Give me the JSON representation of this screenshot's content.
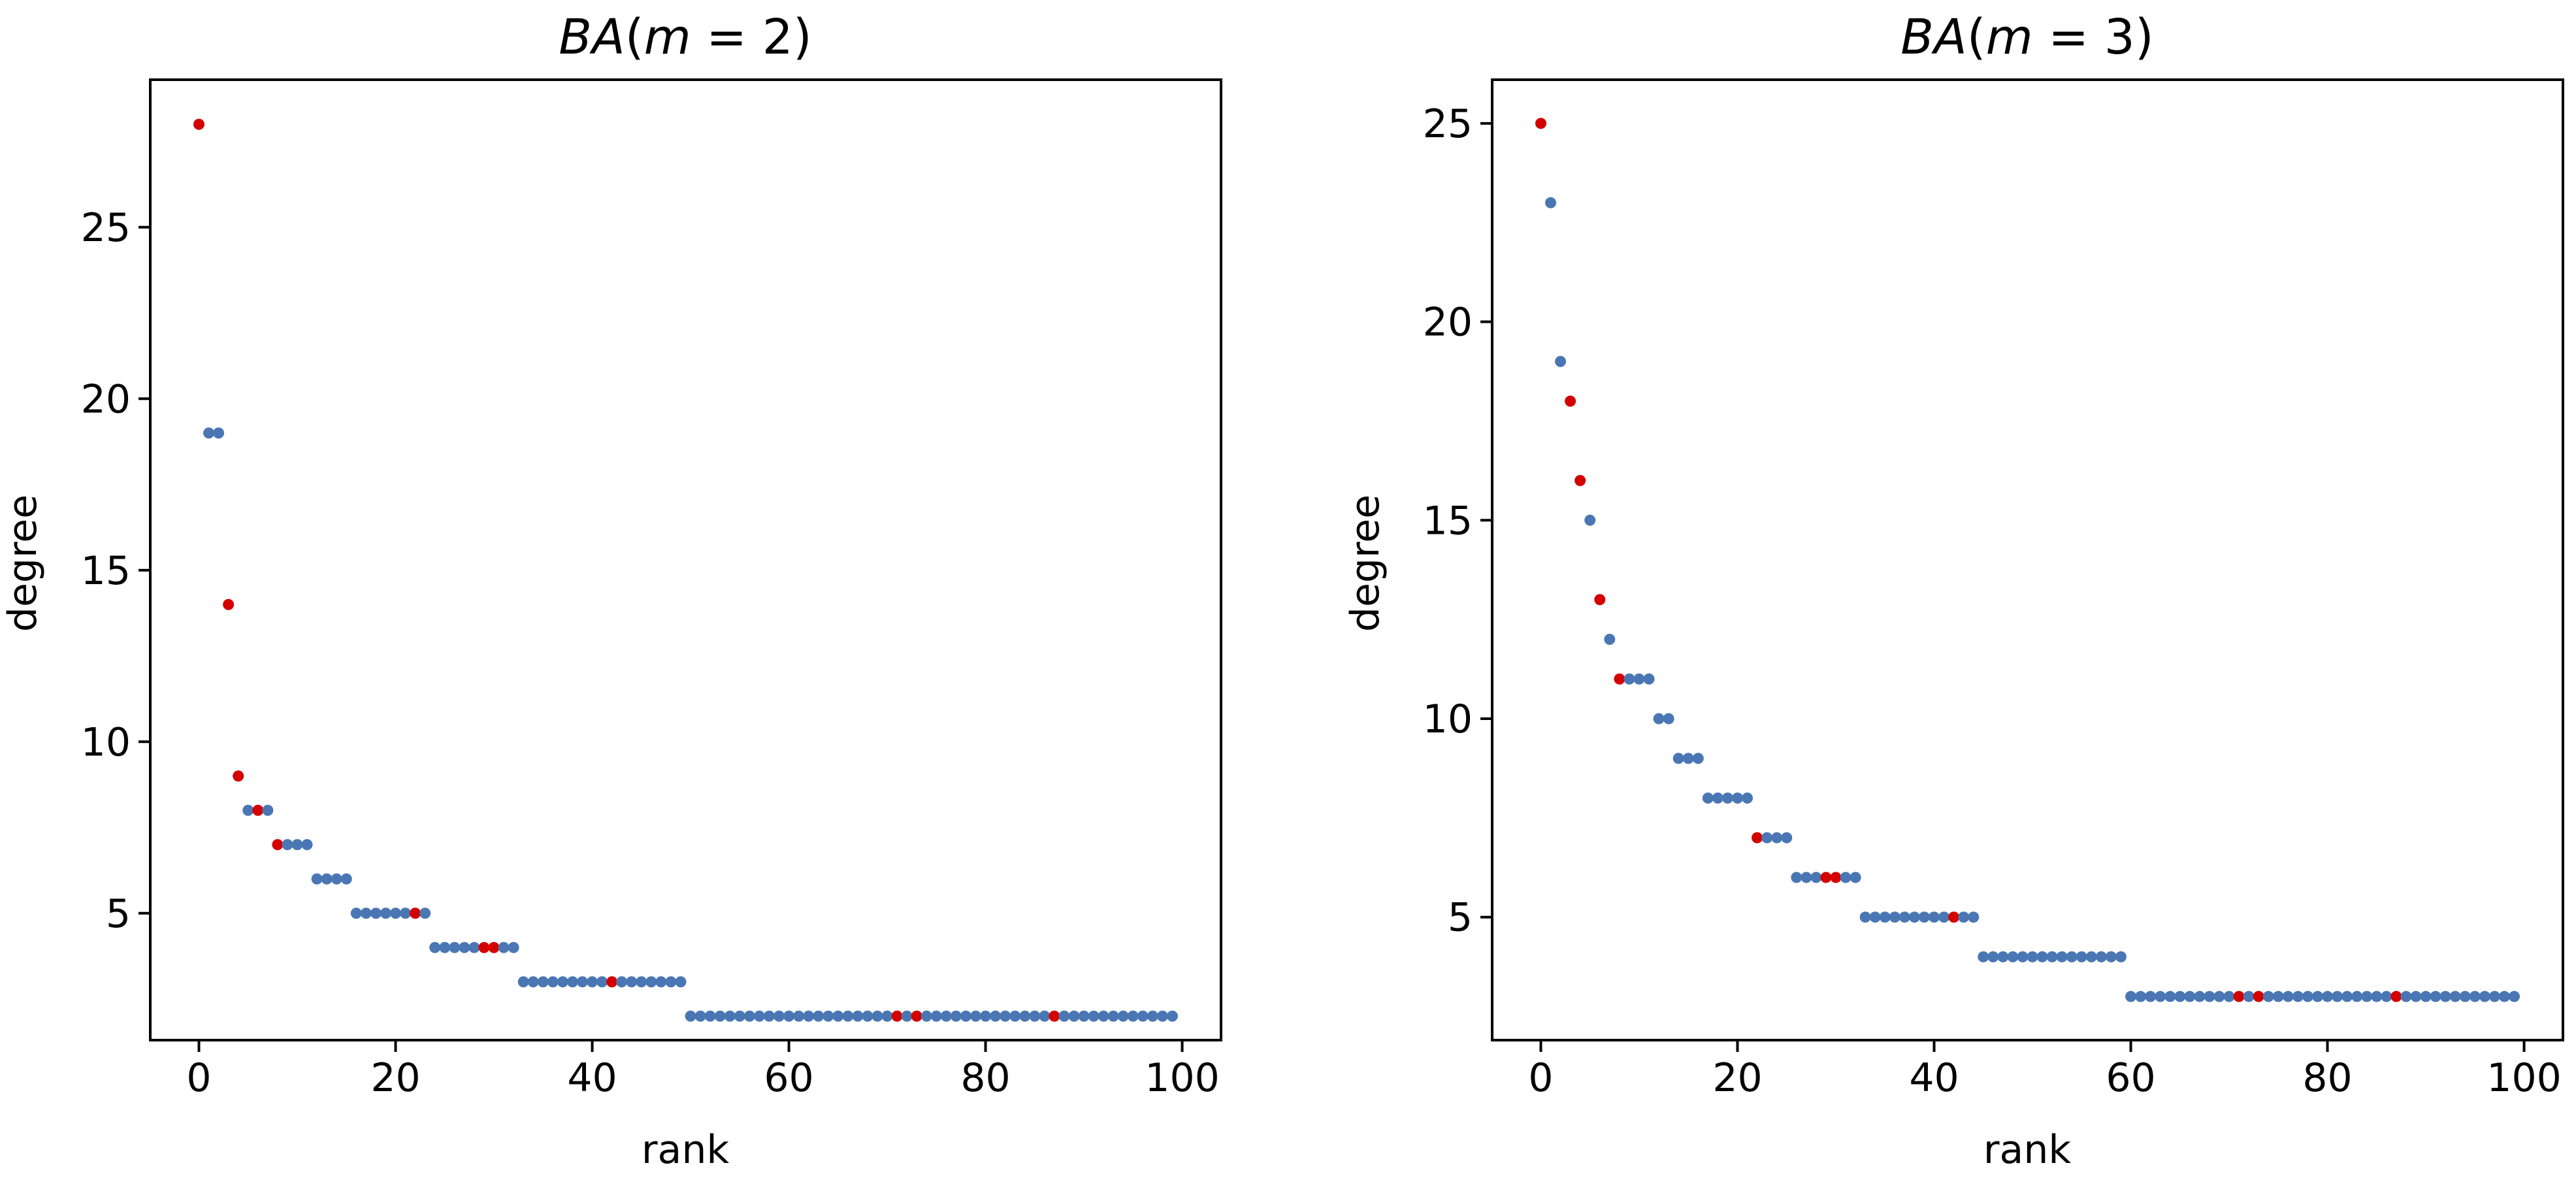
{
  "chart_data": [
    {
      "type": "scatter",
      "title_italic": "BA",
      "title_paren_open": "(",
      "title_var": "m",
      "title_eq": " = ",
      "title_num": "2",
      "title_paren_close": ")",
      "xlabel": "rank",
      "ylabel": "degree",
      "xlim": [
        -4.95,
        103.95
      ],
      "ylim": [
        1.3,
        29.3
      ],
      "xticks": [
        0,
        20,
        40,
        60,
        80,
        100
      ],
      "yticks": [
        5,
        10,
        15,
        20,
        25
      ],
      "colors": {
        "normal": "#4a77b4",
        "highlight": "#d40000"
      },
      "x": [
        0,
        1,
        2,
        3,
        4,
        5,
        6,
        7,
        8,
        9,
        10,
        11,
        12,
        13,
        14,
        15,
        16,
        17,
        18,
        19,
        20,
        21,
        22,
        23,
        24,
        25,
        26,
        27,
        28,
        29,
        30,
        31,
        32,
        33,
        34,
        35,
        36,
        37,
        38,
        39,
        40,
        41,
        42,
        43,
        44,
        45,
        46,
        47,
        48,
        49,
        50,
        51,
        52,
        53,
        54,
        55,
        56,
        57,
        58,
        59,
        60,
        61,
        62,
        63,
        64,
        65,
        66,
        67,
        68,
        69,
        70,
        71,
        72,
        73,
        74,
        75,
        76,
        77,
        78,
        79,
        80,
        81,
        82,
        83,
        84,
        85,
        86,
        87,
        88,
        89,
        90,
        91,
        92,
        93,
        94,
        95,
        96,
        97,
        98,
        99
      ],
      "y": [
        28,
        19,
        19,
        14,
        9,
        8,
        8,
        8,
        7,
        7,
        7,
        7,
        6,
        6,
        6,
        6,
        5,
        5,
        5,
        5,
        5,
        5,
        5,
        5,
        4,
        4,
        4,
        4,
        4,
        4,
        4,
        4,
        4,
        3,
        3,
        3,
        3,
        3,
        3,
        3,
        3,
        3,
        3,
        3,
        3,
        3,
        3,
        3,
        3,
        3,
        2,
        2,
        2,
        2,
        2,
        2,
        2,
        2,
        2,
        2,
        2,
        2,
        2,
        2,
        2,
        2,
        2,
        2,
        2,
        2,
        2,
        2,
        2,
        2,
        2,
        2,
        2,
        2,
        2,
        2,
        2,
        2,
        2,
        2,
        2,
        2,
        2,
        2,
        2,
        2,
        2,
        2,
        2,
        2,
        2,
        2,
        2,
        2,
        2,
        2
      ],
      "highlighted_ranks": [
        0,
        3,
        4,
        6,
        8,
        22,
        29,
        30,
        42,
        71,
        73,
        87
      ]
    },
    {
      "type": "scatter",
      "title_italic": "BA",
      "title_paren_open": "(",
      "title_var": "m",
      "title_eq": " = ",
      "title_num": "3",
      "title_paren_close": ")",
      "xlabel": "rank",
      "ylabel": "degree",
      "xlim": [
        -4.95,
        103.95
      ],
      "ylim": [
        1.9,
        26.1
      ],
      "xticks": [
        0,
        20,
        40,
        60,
        80,
        100
      ],
      "yticks": [
        5,
        10,
        15,
        20,
        25
      ],
      "colors": {
        "normal": "#4a77b4",
        "highlight": "#d40000"
      },
      "x": [
        0,
        1,
        2,
        3,
        4,
        5,
        6,
        7,
        8,
        9,
        10,
        11,
        12,
        13,
        14,
        15,
        16,
        17,
        18,
        19,
        20,
        21,
        22,
        23,
        24,
        25,
        26,
        27,
        28,
        29,
        30,
        31,
        32,
        33,
        34,
        35,
        36,
        37,
        38,
        39,
        40,
        41,
        42,
        43,
        44,
        45,
        46,
        47,
        48,
        49,
        50,
        51,
        52,
        53,
        54,
        55,
        56,
        57,
        58,
        59,
        60,
        61,
        62,
        63,
        64,
        65,
        66,
        67,
        68,
        69,
        70,
        71,
        72,
        73,
        74,
        75,
        76,
        77,
        78,
        79,
        80,
        81,
        82,
        83,
        84,
        85,
        86,
        87,
        88,
        89,
        90,
        91,
        92,
        93,
        94,
        95,
        96,
        97,
        98,
        99
      ],
      "y": [
        25,
        23,
        19,
        18,
        16,
        15,
        13,
        12,
        11,
        11,
        11,
        11,
        10,
        10,
        9,
        9,
        9,
        8,
        8,
        8,
        8,
        8,
        7,
        7,
        7,
        7,
        6,
        6,
        6,
        6,
        6,
        6,
        6,
        5,
        5,
        5,
        5,
        5,
        5,
        5,
        5,
        5,
        5,
        5,
        5,
        4,
        4,
        4,
        4,
        4,
        4,
        4,
        4,
        4,
        4,
        4,
        4,
        4,
        4,
        4,
        3,
        3,
        3,
        3,
        3,
        3,
        3,
        3,
        3,
        3,
        3,
        3,
        3,
        3,
        3,
        3,
        3,
        3,
        3,
        3,
        3,
        3,
        3,
        3,
        3,
        3,
        3,
        3,
        3,
        3,
        3,
        3,
        3,
        3,
        3,
        3,
        3,
        3,
        3,
        3
      ],
      "highlighted_ranks": [
        0,
        3,
        4,
        6,
        8,
        22,
        29,
        30,
        42,
        71,
        73,
        87
      ]
    }
  ]
}
